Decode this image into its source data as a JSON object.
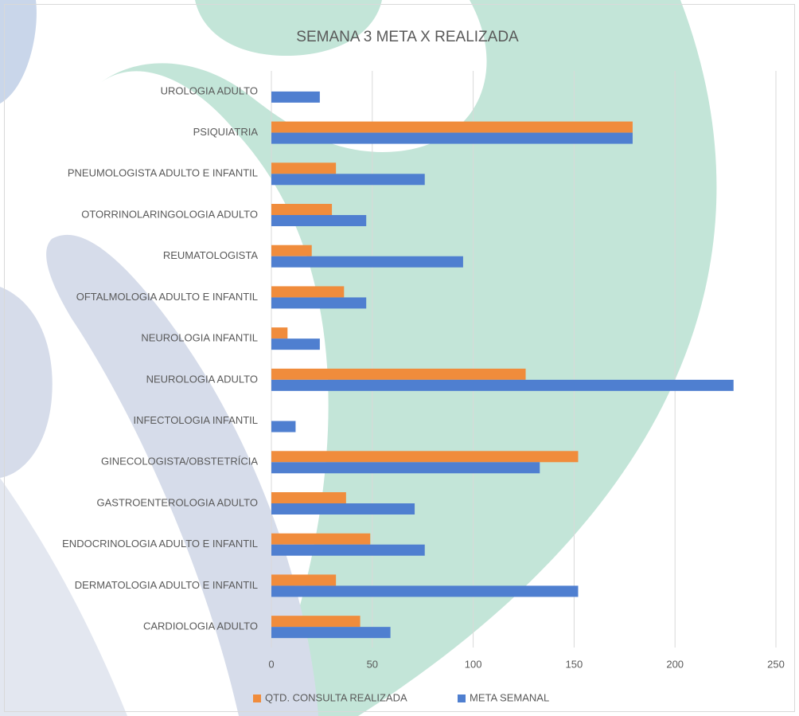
{
  "chart_data": {
    "type": "barh",
    "title": "SEMANA 3 META X REALIZADA",
    "categories": [
      "UROLOGIA ADULTO",
      "PSIQUIATRIA",
      "PNEUMOLOGISTA ADULTO E INFANTIL",
      "OTORRINOLARINGOLOGIA ADULTO",
      "REUMATOLOGISTA",
      "OFTALMOLOGIA ADULTO E INFANTIL",
      "NEUROLOGIA INFANTIL",
      "NEUROLOGIA ADULTO",
      "INFECTOLOGIA INFANTIL",
      "GINECOLOGISTA/OBSTETRÍCIA",
      "GASTROENTEROLOGIA ADULTO",
      "ENDOCRINOLOGIA ADULTO E INFANTIL",
      "DERMATOLOGIA ADULTO E INFANTIL",
      "CARDIOLOGIA ADULTO"
    ],
    "series": [
      {
        "name": "QTD. CONSULTA REALIZADA",
        "color": "#f08c3c",
        "values": [
          0,
          179,
          32,
          30,
          20,
          36,
          8,
          126,
          0,
          152,
          37,
          49,
          32,
          44
        ]
      },
      {
        "name": "META SEMANAL",
        "color": "#4f7fd0",
        "values": [
          24,
          179,
          76,
          47,
          95,
          47,
          24,
          229,
          12,
          133,
          71,
          76,
          152,
          59
        ]
      }
    ],
    "xlim": [
      0,
      250
    ],
    "xticks": [
      0,
      50,
      100,
      150,
      200,
      250
    ],
    "grid": true,
    "legend": "bottom"
  }
}
